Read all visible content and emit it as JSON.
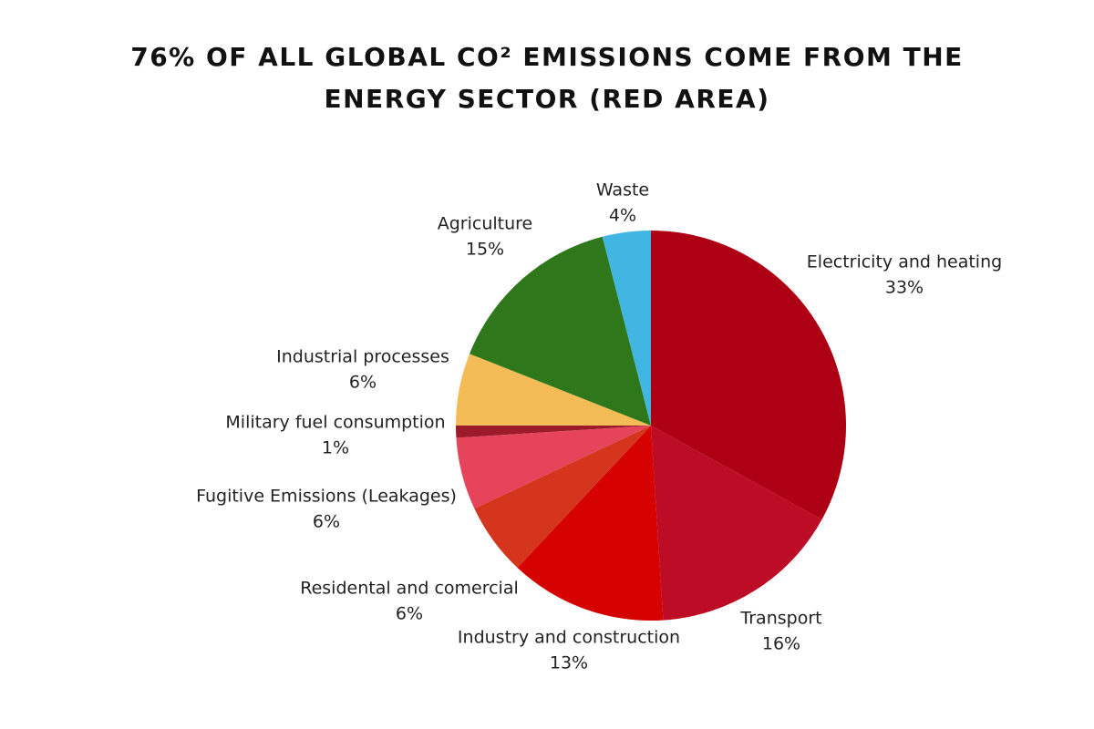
{
  "chart_data": {
    "type": "pie",
    "title": "76% OF ALL GLOBAL CO² EMISSIONS COME FROM THE ENERGY SECTOR (RED AREA)",
    "categories": [
      "Electricity and heating",
      "Transport",
      "Industry and construction",
      "Residental and comercial",
      "Fugitive Emissions (Leakages)",
      "Military fuel consumption",
      "Industrial processes",
      "Agriculture",
      "Waste"
    ],
    "values": [
      33,
      16,
      13,
      6,
      6,
      1,
      6,
      15,
      4
    ],
    "value_labels": [
      "33%",
      "16%",
      "13%",
      "6%",
      "6%",
      "1%",
      "6%",
      "15%",
      "4%"
    ],
    "colors": [
      "#ad0014",
      "#bd0d26",
      "#d60202",
      "#d4351c",
      "#e5445a",
      "#9c1b2a",
      "#f4bc57",
      "#2e781b",
      "#42b6e3"
    ]
  }
}
